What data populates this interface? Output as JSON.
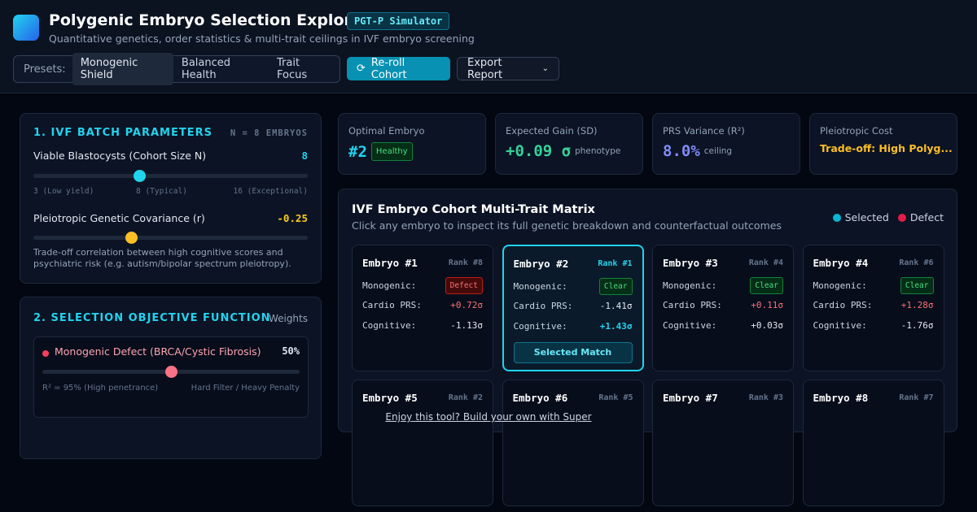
{
  "header": {
    "title": "Polygenic Embryo Selection Explorer",
    "badge": "PGT-P Simulator",
    "subtitle": "Quantitative genetics, order statistics & multi-trait ceilings in IVF embryo screening",
    "presets_label": "Presets:",
    "presets": [
      "Monogenic Shield",
      "Balanced Health",
      "Trait Focus"
    ],
    "reroll": "Re-roll Cohort",
    "export": "Export Report"
  },
  "batch": {
    "title": "1. IVF BATCH PARAMETERS",
    "tag": "N = 8 EMBRYOS",
    "cohort_label": "Viable Blastocysts (Cohort Size N)",
    "cohort_value": "8",
    "range_labels": [
      "3 (Low yield)",
      "8 (Typical)",
      "16 (Exceptional)"
    ],
    "cov_label": "Pleiotropic Genetic Covariance (r)",
    "cov_value": "-0.25",
    "note": "Trade-off correlation between high cognitive scores and psychiatric risk (e.g. autism/bipolar spectrum pleiotropy)."
  },
  "objective": {
    "title": "2. SELECTION OBJECTIVE FUNCTION",
    "weights": "Weights",
    "trait": {
      "name": "Monogenic Defect (BRCA/Cystic Fibrosis)",
      "value": "50%",
      "left": "R² = 95% (High penetrance)",
      "right": "Hard Filter / Heavy Penalty"
    }
  },
  "stats": [
    {
      "label": "Optimal Embryo",
      "value": "#2",
      "extra": "Healthy"
    },
    {
      "label": "Expected Gain (SD)",
      "value": "+0.09 σ",
      "extra": "phenotype"
    },
    {
      "label": "PRS Variance (R²)",
      "value": "8.0%",
      "extra": "ceiling"
    },
    {
      "label": "Pleiotropic Cost",
      "value": "Trade-off: High Polyg..."
    }
  ],
  "matrix": {
    "title": "IVF Embryo Cohort Multi-Trait Matrix",
    "subtitle": "Click any embryo to inspect its full genetic breakdown and counterfactual outcomes",
    "legend": [
      "Selected",
      "Defect"
    ],
    "row_labels": [
      "Monogenic:",
      "Cardio PRS:",
      "Cognitive:"
    ],
    "embryos": [
      {
        "name": "Embryo #1",
        "rank": "Rank #8",
        "mono": "Defect",
        "cardio": "+0.72σ",
        "cog": "-1.13σ"
      },
      {
        "name": "Embryo #2",
        "rank": "Rank #1",
        "mono": "Clear",
        "cardio": "-1.41σ",
        "cog": "+1.43σ",
        "action": "Selected Match"
      },
      {
        "name": "Embryo #3",
        "rank": "Rank #4",
        "mono": "Clear",
        "cardio": "+0.11σ",
        "cog": "+0.03σ"
      },
      {
        "name": "Embryo #4",
        "rank": "Rank #6",
        "mono": "Clear",
        "cardio": "+1.28σ",
        "cog": "-1.76σ"
      },
      {
        "name": "Embryo #5",
        "rank": "Rank #2"
      },
      {
        "name": "Embryo #6",
        "rank": "Rank #5"
      },
      {
        "name": "Embryo #7",
        "rank": "Rank #3"
      },
      {
        "name": "Embryo #8",
        "rank": "Rank #7"
      }
    ]
  },
  "footer": "Enjoy this tool? Build your own with Super"
}
